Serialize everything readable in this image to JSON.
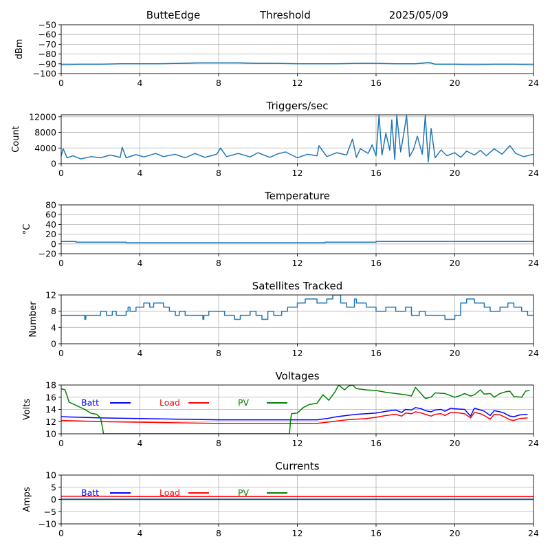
{
  "header": {
    "station": "ButteEdge",
    "mode": "Threshold",
    "date": "2025/05/09"
  },
  "chart_data": [
    {
      "id": "signal",
      "type": "line",
      "title": "",
      "xlabel": "",
      "ylabel": "dBm",
      "xlim": [
        0,
        24
      ],
      "ylim": [
        -100,
        -50
      ],
      "xticks": [
        0,
        4,
        8,
        12,
        16,
        20,
        24
      ],
      "yticks": [
        -100,
        -90,
        -80,
        -70,
        -60,
        -50
      ],
      "grid": true,
      "series": [
        {
          "color": "#1f77b4",
          "x": [
            0,
            1,
            2,
            3,
            4,
            5,
            6,
            7,
            8,
            9,
            10,
            11,
            12,
            13,
            14,
            15,
            16,
            17,
            18,
            18.7,
            19,
            20,
            21,
            22,
            23,
            24
          ],
          "y": [
            -91,
            -90.5,
            -90.5,
            -90,
            -90,
            -90,
            -89.5,
            -89,
            -89,
            -89,
            -89.5,
            -89.5,
            -90,
            -90,
            -90,
            -89.5,
            -89.5,
            -90,
            -90,
            -88.5,
            -90.5,
            -90.5,
            -91,
            -90.5,
            -90.5,
            -91
          ]
        }
      ]
    },
    {
      "id": "triggers",
      "type": "line",
      "title": "Triggers/sec",
      "xlabel": "",
      "ylabel": "Count",
      "xlim": [
        0,
        24
      ],
      "ylim": [
        0,
        12500
      ],
      "xticks": [
        0,
        4,
        8,
        12,
        16,
        20,
        24
      ],
      "yticks": [
        0,
        4000,
        8000,
        12000
      ],
      "grid": true,
      "series": [
        {
          "color": "#1f77b4",
          "x": [
            0,
            0.1,
            0.3,
            0.6,
            1,
            1.5,
            2,
            2.5,
            3,
            3.1,
            3.3,
            3.8,
            4.2,
            4.8,
            5.2,
            5.8,
            6.3,
            6.8,
            7.3,
            7.9,
            8.1,
            8.4,
            9,
            9.6,
            10,
            10.6,
            11,
            11.4,
            12,
            12.5,
            13,
            13.1,
            13.5,
            14,
            14.5,
            14.8,
            15,
            15.2,
            15.6,
            15.8,
            16,
            16.15,
            16.3,
            16.5,
            16.7,
            16.8,
            16.95,
            17.05,
            17.25,
            17.4,
            17.55,
            17.7,
            17.9,
            18.1,
            18.35,
            18.5,
            18.65,
            18.8,
            19,
            19.3,
            19.6,
            20,
            20.3,
            20.6,
            21,
            21.3,
            21.6,
            22,
            22.4,
            22.8,
            23.1,
            23.5,
            24
          ],
          "y": [
            2000,
            3800,
            1500,
            2000,
            1200,
            1800,
            1500,
            2200,
            1600,
            4200,
            1500,
            2300,
            1700,
            2600,
            1800,
            2400,
            1500,
            2600,
            1600,
            2400,
            4000,
            1800,
            2600,
            1700,
            2800,
            1600,
            2500,
            3000,
            1500,
            2400,
            2000,
            4600,
            1800,
            2800,
            2200,
            6300,
            1600,
            3800,
            2600,
            4800,
            2000,
            12400,
            2200,
            7800,
            3400,
            11200,
            1000,
            12300,
            3000,
            7500,
            12300,
            1800,
            3600,
            7000,
            2400,
            12300,
            400,
            9000,
            1500,
            3500,
            2000,
            2800,
            1600,
            3200,
            2200,
            3400,
            2000,
            3800,
            2400,
            4600,
            2600,
            1800,
            2400
          ]
        }
      ]
    },
    {
      "id": "temperature",
      "type": "line",
      "title": "Temperature",
      "xlabel": "",
      "ylabel": "°C",
      "xlim": [
        0,
        24
      ],
      "ylim": [
        -20,
        80
      ],
      "xticks": [
        0,
        4,
        8,
        12,
        16,
        20,
        24
      ],
      "yticks": [
        -20,
        0,
        20,
        40,
        60,
        80
      ],
      "grid": true,
      "series": [
        {
          "color": "#1f77b4",
          "x": [
            0,
            0.75,
            0.75,
            3.3,
            3.3,
            13.4,
            13.4,
            16,
            16,
            24
          ],
          "y": [
            5,
            5,
            3.5,
            3.5,
            2.5,
            2.5,
            3.5,
            3.5,
            5,
            5
          ]
        }
      ]
    },
    {
      "id": "satellites",
      "type": "line",
      "title": "Satellites Tracked",
      "xlabel": "",
      "ylabel": "Number",
      "xlim": [
        0,
        24
      ],
      "ylim": [
        0,
        12
      ],
      "xticks": [
        0,
        4,
        8,
        12,
        16,
        20,
        24
      ],
      "yticks": [
        0,
        4,
        8,
        12
      ],
      "grid": true,
      "series": [
        {
          "color": "#1f77b4",
          "x": [
            0,
            1.2,
            1.2,
            1.25,
            1.25,
            1.5,
            1.5,
            2.0,
            2.0,
            2.3,
            2.3,
            2.6,
            2.6,
            2.8,
            2.8,
            3.3,
            3.3,
            3.4,
            3.4,
            3.5,
            3.5,
            3.8,
            3.8,
            4.2,
            4.2,
            4.5,
            4.5,
            4.7,
            4.7,
            5.2,
            5.2,
            5.5,
            5.5,
            5.8,
            5.8,
            6.0,
            6.0,
            6.3,
            6.3,
            6.5,
            6.5,
            7.2,
            7.2,
            7.25,
            7.25,
            7.5,
            7.5,
            8.3,
            8.3,
            8.8,
            8.8,
            9.1,
            9.1,
            9.3,
            9.3,
            9.6,
            9.6,
            9.9,
            9.9,
            10.2,
            10.2,
            10.5,
            10.5,
            10.8,
            10.8,
            11.2,
            11.2,
            11.5,
            11.5,
            12.0,
            12.0,
            12.4,
            12.4,
            13.0,
            13.0,
            13.5,
            13.5,
            13.8,
            13.8,
            14.2,
            14.2,
            14.5,
            14.5,
            14.9,
            14.9,
            15.0,
            15.0,
            15.5,
            15.5,
            16.0,
            16.0,
            16.5,
            16.5,
            17.0,
            17.0,
            17.5,
            17.5,
            17.8,
            17.8,
            18.2,
            18.2,
            18.5,
            18.5,
            19.5,
            19.5,
            20.0,
            20.0,
            20.3,
            20.3,
            20.6,
            20.6,
            21.0,
            21.0,
            21.5,
            21.5,
            21.8,
            21.8,
            22.3,
            22.3,
            22.7,
            22.7,
            23.0,
            23.0,
            23.4,
            23.4,
            23.7,
            23.7,
            24
          ],
          "y": [
            7,
            7,
            6,
            6,
            7,
            7,
            7,
            7,
            8,
            8,
            7,
            7,
            8,
            8,
            7,
            7,
            8,
            8,
            9,
            9,
            8,
            8,
            9,
            9,
            10,
            10,
            9,
            9,
            10,
            10,
            9,
            9,
            8,
            8,
            7,
            7,
            8,
            8,
            7,
            7,
            7,
            7,
            6,
            6,
            7,
            7,
            8,
            8,
            7,
            7,
            6,
            6,
            7,
            7,
            7,
            7,
            8,
            8,
            7,
            7,
            6,
            6,
            8,
            8,
            7,
            7,
            8,
            8,
            9,
            9,
            10,
            10,
            11,
            11,
            10,
            10,
            11,
            11,
            12,
            12,
            10,
            10,
            9,
            9,
            11,
            11,
            10,
            10,
            9,
            9,
            8,
            8,
            9,
            9,
            8,
            8,
            9,
            9,
            7,
            7,
            8,
            8,
            7,
            7,
            6,
            6,
            7,
            7,
            10,
            10,
            11,
            11,
            10,
            10,
            9,
            9,
            8,
            8,
            9,
            9,
            10,
            10,
            9,
            9,
            8,
            8,
            7,
            7
          ]
        }
      ]
    },
    {
      "id": "voltages",
      "type": "line",
      "title": "Voltages",
      "xlabel": "",
      "ylabel": "Volts",
      "xlim": [
        0,
        24
      ],
      "ylim": [
        10,
        18
      ],
      "xticks": [
        0,
        4,
        8,
        12,
        16,
        20,
        24
      ],
      "yticks": [
        10,
        12,
        14,
        16,
        18
      ],
      "grid": true,
      "legend": "top, horizontal",
      "series": [
        {
          "name": "Batt",
          "color": "#0000ff",
          "x": [
            0,
            1,
            2,
            4,
            6,
            8,
            10,
            12,
            13,
            13.5,
            14,
            14.5,
            15,
            15.5,
            16,
            16.5,
            17,
            17.3,
            17.5,
            17.8,
            18,
            18.3,
            18.5,
            18.8,
            19,
            19.3,
            19.5,
            19.8,
            20,
            20.5,
            20.8,
            21,
            21.3,
            21.5,
            21.8,
            22,
            22.3,
            22.5,
            22.8,
            23,
            23.3,
            23.7
          ],
          "y": [
            12.8,
            12.7,
            12.6,
            12.5,
            12.4,
            12.3,
            12.3,
            12.3,
            12.3,
            12.5,
            12.8,
            13.0,
            13.2,
            13.3,
            13.4,
            13.7,
            13.9,
            13.5,
            14.0,
            13.9,
            14.3,
            14.1,
            13.8,
            13.6,
            13.9,
            14.0,
            13.7,
            14.2,
            14.1,
            14.0,
            12.9,
            14.2,
            13.9,
            13.7,
            13.0,
            13.8,
            13.6,
            13.4,
            12.9,
            12.8,
            13.1,
            13.2
          ]
        },
        {
          "name": "Load",
          "color": "#ff0000",
          "x": [
            0,
            1,
            2,
            4,
            6,
            8,
            10,
            12,
            13,
            13.5,
            14,
            14.5,
            15,
            15.5,
            16,
            16.5,
            17,
            17.3,
            17.5,
            17.8,
            18,
            18.3,
            18.5,
            18.8,
            19,
            19.3,
            19.5,
            19.8,
            20,
            20.5,
            20.8,
            21,
            21.3,
            21.5,
            21.8,
            22,
            22.3,
            22.5,
            22.8,
            23,
            23.3,
            23.7
          ],
          "y": [
            12.2,
            12.1,
            12.0,
            11.9,
            11.8,
            11.7,
            11.7,
            11.7,
            11.7,
            11.9,
            12.1,
            12.3,
            12.4,
            12.5,
            12.7,
            13.0,
            13.2,
            12.9,
            13.4,
            13.3,
            13.6,
            13.4,
            13.2,
            12.9,
            13.2,
            13.3,
            13.0,
            13.5,
            13.5,
            13.3,
            12.6,
            13.5,
            13.3,
            13.0,
            12.4,
            13.2,
            13.1,
            12.8,
            12.3,
            12.2,
            12.5,
            12.6
          ]
        },
        {
          "name": "PV",
          "color": "#008000",
          "x": [
            0,
            0.2,
            0.4,
            0.8,
            1.2,
            1.5,
            1.8,
            2.0,
            2.1,
            2.15,
            11.6,
            11.65,
            11.7,
            12.0,
            12.3,
            12.6,
            13.0,
            13.3,
            13.6,
            13.9,
            14.1,
            14.4,
            14.6,
            14.8,
            15.0,
            15.5,
            16.0,
            16.5,
            17.0,
            17.5,
            17.8,
            18.0,
            18.5,
            18.8,
            19.0,
            19.5,
            20.0,
            20.3,
            20.5,
            20.8,
            21.0,
            21.3,
            21.5,
            21.8,
            22.0,
            22.3,
            22.6,
            22.8,
            23.0,
            23.4,
            23.6,
            23.8
          ],
          "y": [
            17.4,
            17.2,
            15.2,
            14.6,
            14.0,
            13.4,
            13.2,
            12.6,
            11.0,
            10.0,
            10.0,
            12.0,
            13.3,
            13.4,
            14.3,
            14.8,
            15.0,
            16.4,
            15.5,
            16.8,
            18.0,
            17.2,
            17.8,
            18.0,
            17.4,
            17.2,
            17.1,
            16.8,
            16.6,
            16.4,
            16.2,
            17.6,
            15.8,
            16.0,
            16.7,
            16.6,
            16.0,
            16.3,
            16.6,
            16.2,
            16.4,
            17.2,
            16.5,
            16.6,
            16.0,
            16.6,
            16.9,
            17.0,
            16.1,
            16.0,
            17.0,
            17.1
          ]
        }
      ]
    },
    {
      "id": "currents",
      "type": "line",
      "title": "Currents",
      "xlabel": "",
      "ylabel": "Amps",
      "xlim": [
        0,
        24
      ],
      "ylim": [
        -10,
        10
      ],
      "xticks": [
        0,
        4,
        8,
        12,
        16,
        20,
        24
      ],
      "yticks": [
        -10,
        -5,
        0,
        5,
        10
      ],
      "grid": true,
      "legend": "top, horizontal",
      "series": [
        {
          "name": "Batt",
          "color": "#0000ff",
          "x": [
            0,
            24
          ],
          "y": [
            0.1,
            0.1
          ]
        },
        {
          "name": "Load",
          "color": "#ff0000",
          "x": [
            0,
            2,
            4,
            6,
            8,
            10,
            12,
            14,
            16,
            18,
            20,
            22,
            24
          ],
          "y": [
            1.3,
            1.3,
            1.2,
            1.2,
            1.2,
            1.2,
            1.2,
            1.2,
            1.2,
            1.2,
            1.2,
            1.2,
            1.2
          ]
        },
        {
          "name": "PV",
          "color": "#008000",
          "x": [
            0,
            24
          ],
          "y": [
            0,
            0
          ]
        }
      ]
    }
  ]
}
